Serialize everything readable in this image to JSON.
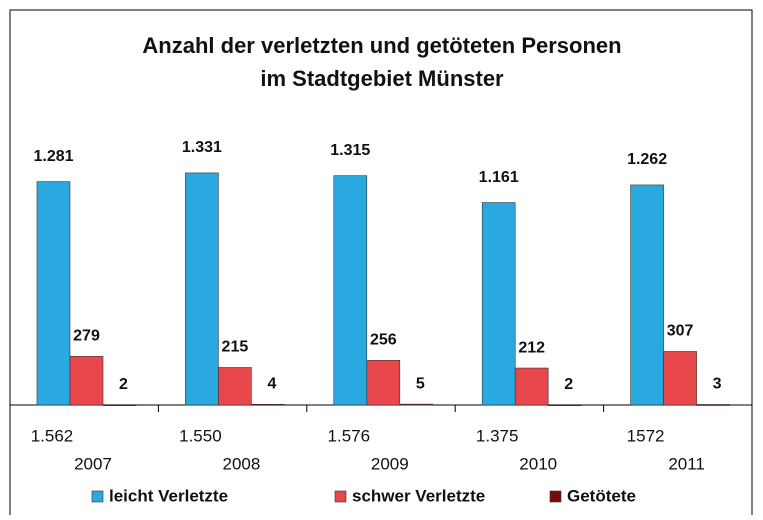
{
  "chart_data": {
    "type": "bar",
    "title": [
      "Anzahl der verletzten und getöteten Personen",
      "im Stadtgebiet Münster"
    ],
    "categories": [
      "2007",
      "2008",
      "2009",
      "2010",
      "2011"
    ],
    "category_totals": [
      "1.562",
      "1.550",
      "1.576",
      "1.375",
      "1572"
    ],
    "series": [
      {
        "name": "leicht Verletzte",
        "color": "#2aa8e0",
        "values": [
          1281,
          1331,
          1315,
          1161,
          1262
        ],
        "value_labels": [
          "1.281",
          "1.331",
          "1.315",
          "1.161",
          "1.262"
        ]
      },
      {
        "name": "schwer Verletzte",
        "color": "#e8474b",
        "values": [
          279,
          215,
          256,
          212,
          307
        ]
      },
      {
        "name": "Getötete",
        "color": "#7a0a0a",
        "values": [
          2,
          4,
          5,
          2,
          3
        ]
      }
    ],
    "ylim": [
      0,
      1600
    ]
  }
}
